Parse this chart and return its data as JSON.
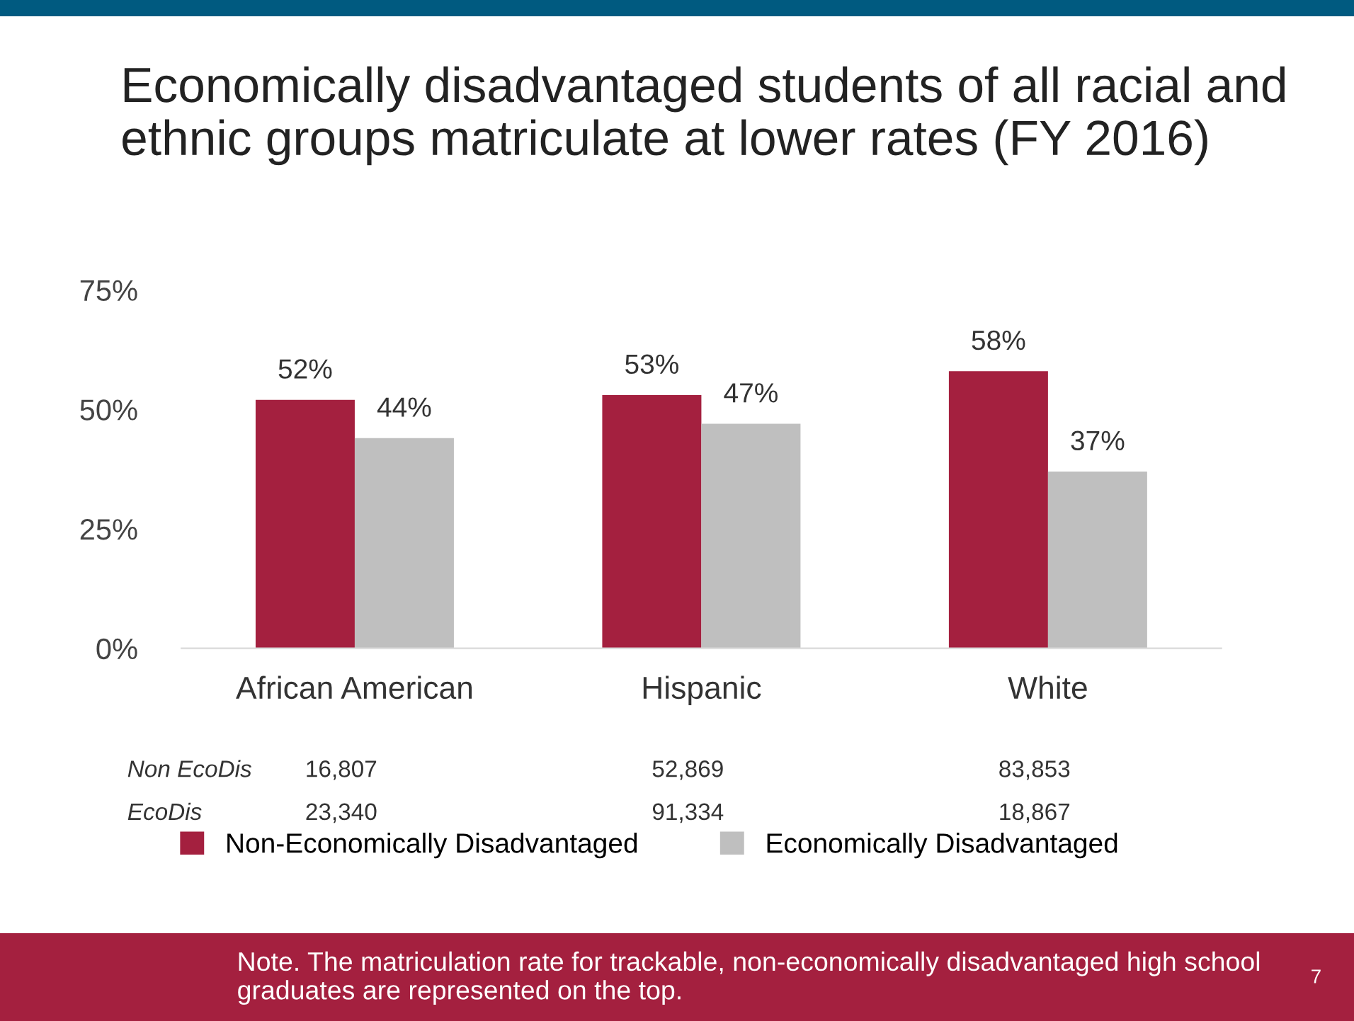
{
  "chart_data": {
    "type": "bar",
    "title": "Economically disadvantaged students of all racial and ethnic groups matriculate at lower rates (FY 2016)",
    "categories": [
      "African American",
      "Hispanic",
      "White"
    ],
    "series": [
      {
        "name": "Non-Economically Disadvantaged",
        "color": "#a4203f",
        "values": [
          52,
          53,
          58
        ],
        "value_labels": [
          "52%",
          "53%",
          "58%"
        ]
      },
      {
        "name": "Economically Disadvantaged",
        "color": "#bfbfbf",
        "values": [
          44,
          47,
          37
        ],
        "value_labels": [
          "44%",
          "47%",
          "37%"
        ]
      }
    ],
    "ylim": [
      0,
      75
    ],
    "yticks": [
      {
        "value": 0,
        "label": "0%"
      },
      {
        "value": 25,
        "label": "25%"
      },
      {
        "value": 50,
        "label": "50%"
      },
      {
        "value": 75,
        "label": "75%"
      }
    ],
    "grid": false,
    "legend": "bottom",
    "annotations": [
      "Non EcoDis",
      "16,807",
      "52,869",
      "83,853",
      "EcoDis",
      "23,340",
      "91,334",
      "18,867",
      "Note. The matriculation rate for trackable, non-economically disadvantaged high school graduates are represented on the top.",
      "7"
    ]
  }
}
